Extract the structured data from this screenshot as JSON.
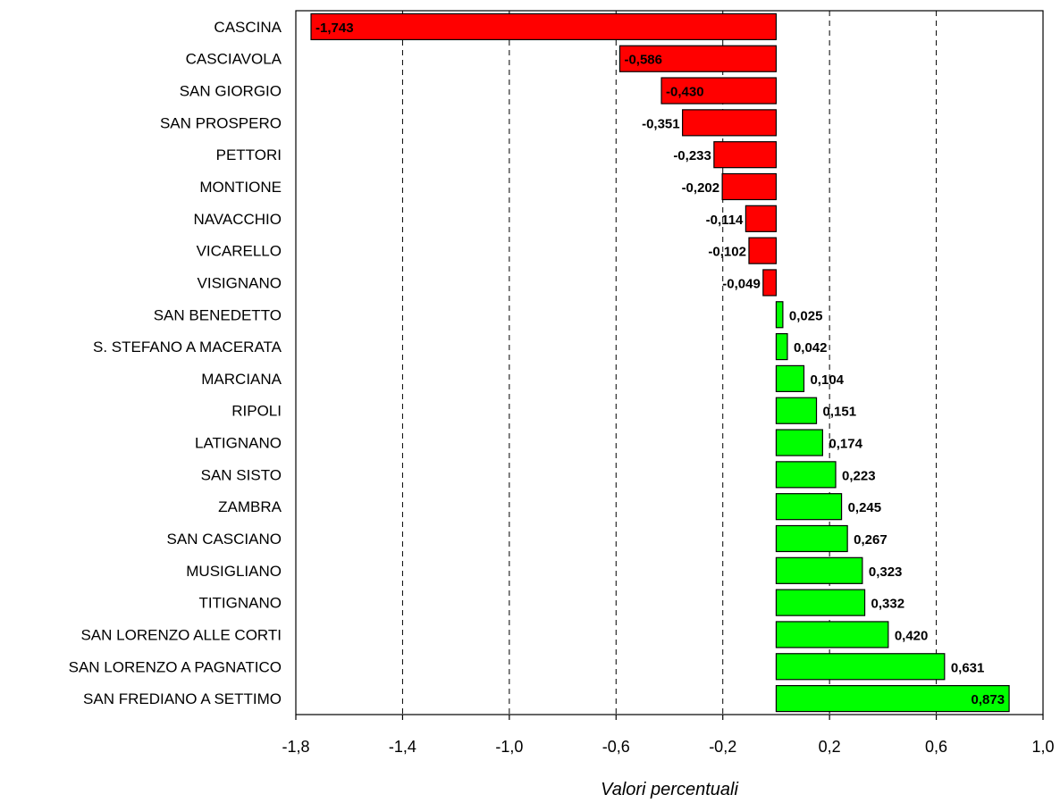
{
  "chart_data": {
    "type": "bar",
    "orientation": "horizontal",
    "xlabel": "Valori percentuali",
    "xlim": [
      -1.8,
      1.0
    ],
    "x_ticks": [
      -1.8,
      -1.4,
      -1.0,
      -0.6,
      -0.2,
      0.2,
      0.6,
      1.0
    ],
    "x_tick_labels": [
      "-1,8",
      "-1,4",
      "-1,0",
      "-0,6",
      "-0,2",
      "0,2",
      "0,6",
      "1,0"
    ],
    "grid": "vertical dashed",
    "categories": [
      "CASCINA",
      "CASCIAVOLA",
      "SAN GIORGIO",
      "SAN PROSPERO",
      "PETTORI",
      "MONTIONE",
      "NAVACCHIO",
      "VICARELLO",
      "VISIGNANO",
      "SAN BENEDETTO",
      "S. STEFANO A MACERATA",
      "MARCIANA",
      "RIPOLI",
      "LATIGNANO",
      "SAN SISTO",
      "ZAMBRA",
      "SAN CASCIANO",
      "MUSIGLIANO",
      "TITIGNANO",
      "SAN LORENZO ALLE CORTI",
      "SAN LORENZO A PAGNATICO",
      "SAN FREDIANO A SETTIMO"
    ],
    "values": [
      -1.743,
      -0.586,
      -0.43,
      -0.351,
      -0.233,
      -0.202,
      -0.114,
      -0.102,
      -0.049,
      0.025,
      0.042,
      0.104,
      0.151,
      0.174,
      0.223,
      0.245,
      0.267,
      0.323,
      0.332,
      0.42,
      0.631,
      0.873
    ],
    "value_labels": [
      "-1,743",
      "-0,586",
      "-0,430",
      "-0,351",
      "-0,233",
      "-0,202",
      "-0,114",
      "-0,102",
      "-0,049",
      "0,025",
      "0,042",
      "0,104",
      "0,151",
      "0,174",
      "0,223",
      "0,245",
      "0,267",
      "0,323",
      "0,332",
      "0,420",
      "0,631",
      "0,873"
    ],
    "colors": {
      "negative": "#ff0000",
      "positive": "#00ff00",
      "border": "#000000"
    }
  }
}
